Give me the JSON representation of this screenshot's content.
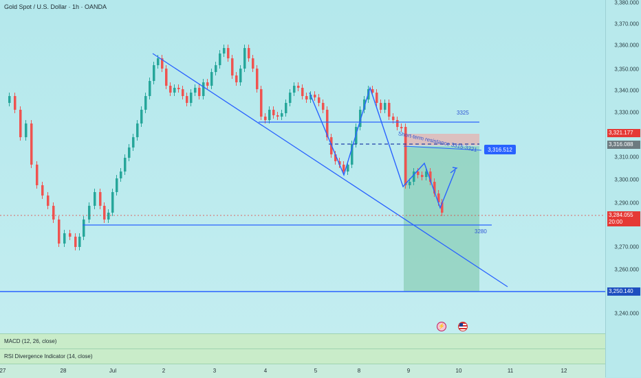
{
  "header": {
    "symbol_title": "Gold Spot / U.S. Dollar · 1h · OANDA"
  },
  "price_scale": {
    "ticks": [
      "3,380.000",
      "3,370.000",
      "3,360.000",
      "3,350.000",
      "3,340.000",
      "3,330.000",
      "3,310.000",
      "3,300.000",
      "3,290.000",
      "3,270.000",
      "3,260.000",
      "3,240.000"
    ],
    "tags": {
      "red_upper": "3,321.177",
      "gray": "3,316.088",
      "red_current": "3,284.055",
      "countdown": "20:00",
      "blue_line": "3,250.140",
      "callout": "3,316.512"
    }
  },
  "annotations": {
    "level_3325": "3325",
    "level_3280": "3280",
    "resistance_text": "Short-term resistance 3315-3321"
  },
  "indicators": {
    "macd": "MACD (12, 26, close)",
    "rsi": "RSI Divergence Indicator (14, close)"
  },
  "time_axis": [
    "27",
    "28",
    "Jul",
    "2",
    "3",
    "4",
    "5",
    "8",
    "9",
    "10",
    "11",
    "12"
  ],
  "icons": [
    "flash-event-icon",
    "us-flag-icon"
  ],
  "colors": {
    "bull": "#26a69a",
    "bear": "#ef5350",
    "drawing": "#2962ff",
    "target_zone": "#8fd1bc"
  }
}
